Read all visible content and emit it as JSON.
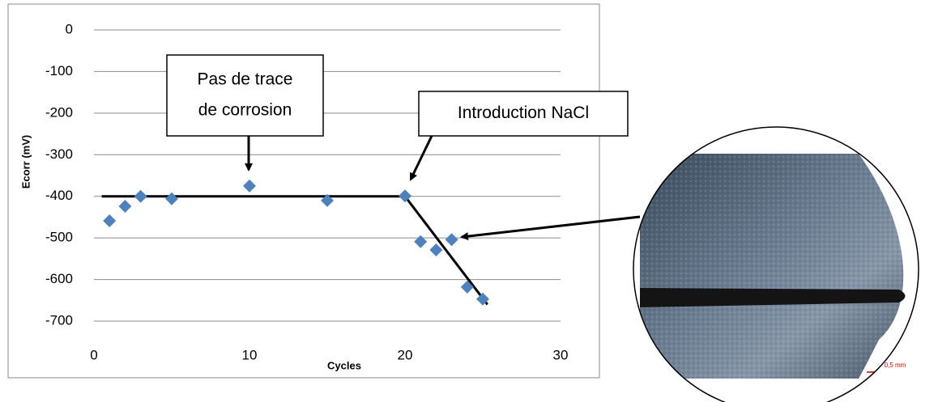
{
  "chart_data": {
    "type": "scatter",
    "x_label": "Cycles",
    "y_label": "Ecorr (mV)",
    "x": [
      1,
      2,
      3,
      5,
      10,
      15,
      20,
      21,
      22,
      23,
      24,
      25
    ],
    "values": [
      -459,
      -424,
      -400,
      -406,
      -375,
      -410,
      -399,
      -509,
      -529,
      -504,
      -618,
      -647
    ],
    "color": "#4f81bd",
    "xlim": [
      0,
      30
    ],
    "xticks": [
      0,
      10,
      20,
      30
    ],
    "ylim": [
      -700,
      0
    ],
    "yticks": [
      0,
      -100,
      -200,
      -300,
      -400,
      -500,
      -600,
      -700
    ],
    "grid": true,
    "trend_line": {
      "x": [
        0.5,
        20,
        25.3
      ],
      "values": [
        -400,
        -400,
        -660
      ],
      "color": "#000000"
    },
    "annotations": [
      {
        "lines": [
          "Pas de trace",
          "de corrosion"
        ]
      },
      {
        "lines": [
          "Introduction NaCl"
        ]
      }
    ],
    "inset_scale_label": "0,5 mm"
  }
}
